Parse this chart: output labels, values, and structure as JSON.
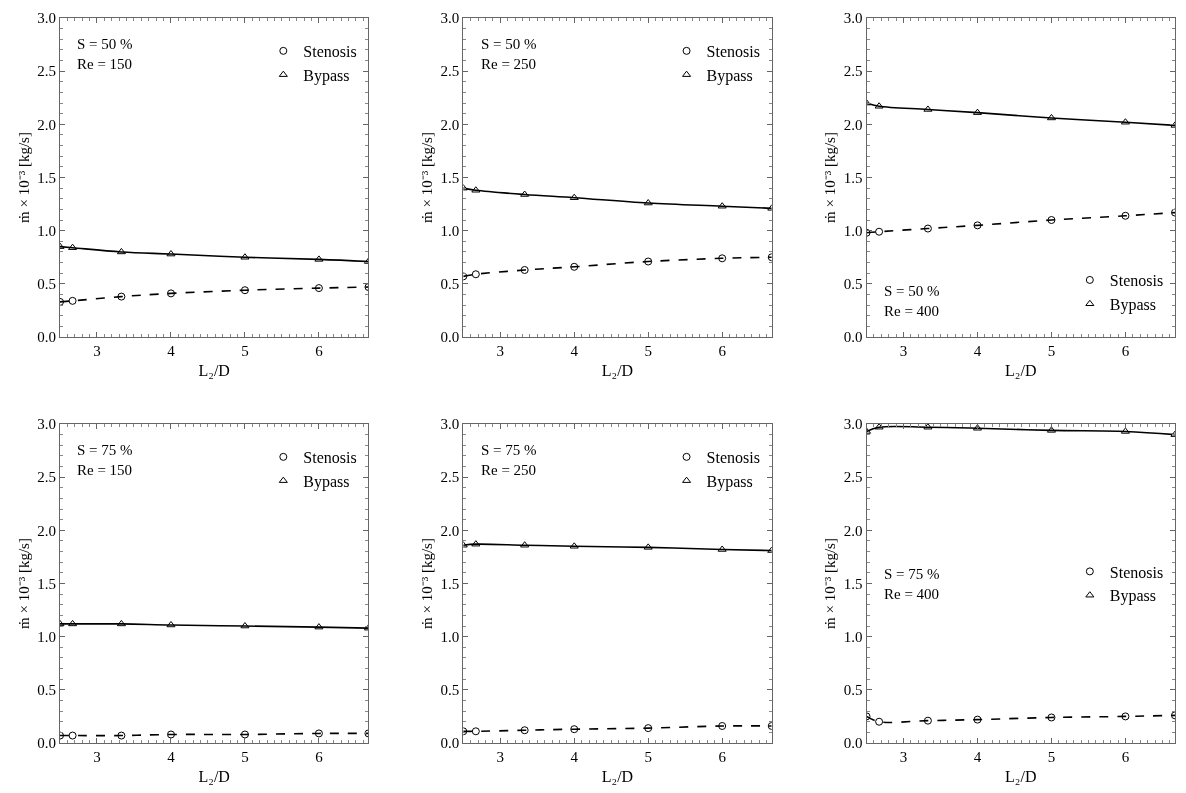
{
  "chart_data": [
    {
      "type": "line",
      "xlabel": "L₂/D",
      "ylabel": "ṁ × 10⁻³ [kg/s]",
      "annotations": [
        "S = 50 %\nRe = 150"
      ],
      "xlim": [
        2.5,
        6.67
      ],
      "xticks": [
        3,
        4,
        5,
        6
      ],
      "ylim": [
        0,
        3
      ],
      "yticks": [
        {
          "value": 0,
          "label": "0.0"
        },
        {
          "value": 0.5,
          "label": "0.5"
        },
        {
          "value": 1,
          "label": "1.0"
        },
        {
          "value": 1.5,
          "label": "1.5"
        },
        {
          "value": 2,
          "label": "2.0"
        },
        {
          "value": 2.5,
          "label": "2.5"
        },
        {
          "value": 3,
          "label": "3.0"
        }
      ],
      "legend": "top right",
      "x": [
        2.5,
        2.67,
        3.33,
        4,
        5,
        6,
        6.67
      ],
      "series": [
        {
          "name": "Stenosis",
          "color": "#000000",
          "marker": "circle",
          "line_style": "dashed",
          "values": [
            0.33,
            0.34,
            0.38,
            0.41,
            0.44,
            0.46,
            0.47
          ]
        },
        {
          "name": "Bypass",
          "color": "#000000",
          "marker": "triangle",
          "line_style": "solid",
          "values": [
            0.85,
            0.84,
            0.8,
            0.78,
            0.75,
            0.73,
            0.71
          ]
        }
      ]
    },
    {
      "type": "line",
      "xlabel": "L₂/D",
      "ylabel": "ṁ × 10⁻³ [kg/s]",
      "annotations": [
        "S = 50 %\nRe = 250"
      ],
      "xlim": [
        2.5,
        6.67
      ],
      "xticks": [
        3,
        4,
        5,
        6
      ],
      "ylim": [
        0,
        3
      ],
      "yticks": [
        {
          "value": 0,
          "label": "0.0"
        },
        {
          "value": 0.5,
          "label": "0.5"
        },
        {
          "value": 1,
          "label": "1.0"
        },
        {
          "value": 1.5,
          "label": "1.5"
        },
        {
          "value": 2,
          "label": "2.0"
        },
        {
          "value": 2.5,
          "label": "2.5"
        },
        {
          "value": 3,
          "label": "3.0"
        }
      ],
      "legend": "top right",
      "x": [
        2.5,
        2.67,
        3.33,
        4,
        5,
        6,
        6.67
      ],
      "series": [
        {
          "name": "Stenosis",
          "color": "#000000",
          "marker": "circle",
          "line_style": "dashed",
          "values": [
            0.57,
            0.59,
            0.63,
            0.66,
            0.71,
            0.74,
            0.75
          ]
        },
        {
          "name": "Bypass",
          "color": "#000000",
          "marker": "triangle",
          "line_style": "solid",
          "values": [
            1.4,
            1.38,
            1.34,
            1.31,
            1.26,
            1.23,
            1.21
          ]
        }
      ]
    },
    {
      "type": "line",
      "xlabel": "L₂/D",
      "ylabel": "ṁ × 10⁻³ [kg/s]",
      "annotations": [
        "S = 50 %\nRe = 400"
      ],
      "xlim": [
        2.5,
        6.67
      ],
      "xticks": [
        3,
        4,
        5,
        6
      ],
      "ylim": [
        0,
        3
      ],
      "yticks": [
        {
          "value": 0,
          "label": "0.0"
        },
        {
          "value": 0.5,
          "label": "0.5"
        },
        {
          "value": 1,
          "label": "1.0"
        },
        {
          "value": 1.5,
          "label": "1.5"
        },
        {
          "value": 2,
          "label": "2.0"
        },
        {
          "value": 2.5,
          "label": "2.5"
        },
        {
          "value": 3,
          "label": "3.0"
        }
      ],
      "legend": "bottom right",
      "x": [
        2.5,
        2.67,
        3.33,
        4,
        5,
        6,
        6.67
      ],
      "series": [
        {
          "name": "Stenosis",
          "color": "#000000",
          "marker": "circle",
          "line_style": "dashed",
          "values": [
            0.98,
            0.99,
            1.02,
            1.05,
            1.1,
            1.14,
            1.17
          ]
        },
        {
          "name": "Bypass",
          "color": "#000000",
          "marker": "triangle",
          "line_style": "solid",
          "values": [
            2.2,
            2.17,
            2.14,
            2.11,
            2.06,
            2.02,
            1.99
          ]
        }
      ]
    },
    {
      "type": "line",
      "xlabel": "L₂/D",
      "ylabel": "ṁ × 10⁻³ [kg/s]",
      "annotations": [
        "S = 75 %\nRe = 150"
      ],
      "xlim": [
        2.5,
        6.67
      ],
      "xticks": [
        3,
        4,
        5,
        6
      ],
      "ylim": [
        0,
        3
      ],
      "yticks": [
        {
          "value": 0,
          "label": "0.0"
        },
        {
          "value": 0.5,
          "label": "0.5"
        },
        {
          "value": 1,
          "label": "1.0"
        },
        {
          "value": 1.5,
          "label": "1.5"
        },
        {
          "value": 2,
          "label": "2.0"
        },
        {
          "value": 2.5,
          "label": "2.5"
        },
        {
          "value": 3,
          "label": "3.0"
        }
      ],
      "legend": "top right",
      "x": [
        2.5,
        2.67,
        3.33,
        4,
        5,
        6,
        6.67
      ],
      "series": [
        {
          "name": "Stenosis",
          "color": "#000000",
          "marker": "circle",
          "line_style": "dashed",
          "values": [
            0.07,
            0.07,
            0.07,
            0.08,
            0.08,
            0.09,
            0.09
          ]
        },
        {
          "name": "Bypass",
          "color": "#000000",
          "marker": "triangle",
          "line_style": "solid",
          "values": [
            1.12,
            1.12,
            1.12,
            1.11,
            1.1,
            1.09,
            1.08
          ]
        }
      ]
    },
    {
      "type": "line",
      "xlabel": "L₂/D",
      "ylabel": "ṁ × 10⁻³ [kg/s]",
      "annotations": [
        "S = 75 %\nRe = 250"
      ],
      "xlim": [
        2.5,
        6.67
      ],
      "xticks": [
        3,
        4,
        5,
        6
      ],
      "ylim": [
        0,
        3
      ],
      "yticks": [
        {
          "value": 0,
          "label": "0.0"
        },
        {
          "value": 0.5,
          "label": "0.5"
        },
        {
          "value": 1,
          "label": "1.0"
        },
        {
          "value": 1.5,
          "label": "1.5"
        },
        {
          "value": 2,
          "label": "2.0"
        },
        {
          "value": 2.5,
          "label": "2.5"
        },
        {
          "value": 3,
          "label": "3.0"
        }
      ],
      "legend": "top right",
      "x": [
        2.5,
        2.67,
        3.33,
        4,
        5,
        6,
        6.67
      ],
      "series": [
        {
          "name": "Stenosis",
          "color": "#000000",
          "marker": "circle",
          "line_style": "dashed",
          "values": [
            0.11,
            0.11,
            0.12,
            0.13,
            0.14,
            0.16,
            0.16
          ]
        },
        {
          "name": "Bypass",
          "color": "#000000",
          "marker": "triangle",
          "line_style": "solid",
          "values": [
            1.86,
            1.87,
            1.86,
            1.85,
            1.84,
            1.82,
            1.81
          ]
        }
      ]
    },
    {
      "type": "line",
      "xlabel": "L₂/D",
      "ylabel": "ṁ × 10⁻³ [kg/s]",
      "annotations": [
        "S = 75 %\nRe = 400"
      ],
      "xlim": [
        2.5,
        6.67
      ],
      "xticks": [
        3,
        4,
        5,
        6
      ],
      "ylim": [
        0,
        3
      ],
      "yticks": [
        {
          "value": 0,
          "label": "0.0"
        },
        {
          "value": 0.5,
          "label": "0.5"
        },
        {
          "value": 1,
          "label": "1.0"
        },
        {
          "value": 1.5,
          "label": "1.5"
        },
        {
          "value": 2,
          "label": "2.0"
        },
        {
          "value": 2.5,
          "label": "2.5"
        },
        {
          "value": 3,
          "label": "3.0"
        }
      ],
      "legend": "right",
      "x": [
        2.5,
        2.67,
        3.33,
        4,
        5,
        6,
        6.67
      ],
      "series": [
        {
          "name": "Stenosis",
          "color": "#000000",
          "marker": "circle",
          "line_style": "dashed",
          "values": [
            0.25,
            0.2,
            0.21,
            0.22,
            0.24,
            0.25,
            0.26
          ]
        },
        {
          "name": "Bypass",
          "color": "#000000",
          "marker": "triangle",
          "line_style": "solid",
          "values": [
            2.93,
            2.97,
            2.97,
            2.96,
            2.94,
            2.93,
            2.9
          ]
        }
      ]
    }
  ]
}
